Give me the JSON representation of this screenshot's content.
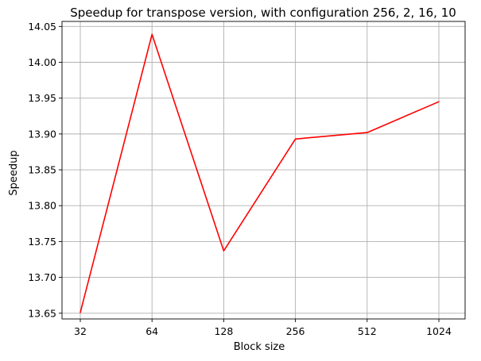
{
  "chart_data": {
    "type": "line",
    "title": "Speedup for transpose version, with configuration 256, 2, 16, 10",
    "xlabel": "Block size",
    "ylabel": "Speedup",
    "categories": [
      "32",
      "64",
      "128",
      "256",
      "512",
      "1024"
    ],
    "series": [
      {
        "values": [
          13.651,
          14.039,
          13.737,
          13.893,
          13.902,
          13.945
        ],
        "color": "#ff0000"
      }
    ],
    "ylim": [
      13.642,
      14.057
    ],
    "yticks": [
      "13.65",
      "13.70",
      "13.75",
      "13.80",
      "13.85",
      "13.90",
      "13.95",
      "14.00",
      "14.05"
    ],
    "grid": true,
    "legend": "none"
  }
}
